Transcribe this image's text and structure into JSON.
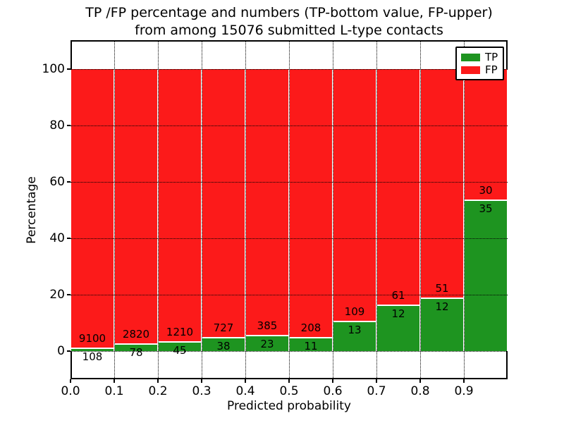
{
  "chart_data": {
    "type": "bar",
    "stacked": true,
    "title_line1": "TP /FP percentage and numbers (TP-bottom value, FP-upper)",
    "title_line2": "from among 15076 submitted L-type contacts",
    "xlabel": "Predicted probability",
    "ylabel": "Percentage",
    "xlim": [
      0.0,
      1.0
    ],
    "ylim": [
      -10,
      110.25
    ],
    "x_tick_labels": [
      "0.0",
      "0.1",
      "0.2",
      "0.3",
      "0.4",
      "0.5",
      "0.6",
      "0.7",
      "0.8",
      "0.9"
    ],
    "y_tick_values": [
      0,
      20,
      40,
      60,
      80,
      100
    ],
    "bin_width": 0.1,
    "total_contacts": 15076,
    "grid": "dotted",
    "legend_position": "upper-right",
    "series": [
      {
        "name": "TP",
        "color": "#1e9420",
        "counts": [
          108,
          78,
          45,
          38,
          23,
          11,
          13,
          12,
          12,
          35
        ]
      },
      {
        "name": "FP",
        "color": "#fc1a1a",
        "counts": [
          9100,
          2820,
          1210,
          727,
          385,
          208,
          109,
          61,
          51,
          30
        ]
      }
    ]
  }
}
